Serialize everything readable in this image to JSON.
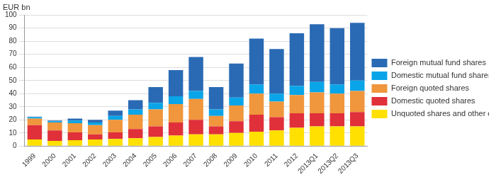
{
  "chart_data": {
    "type": "bar",
    "stacked": true,
    "ylabel": "EUR bn",
    "categories": [
      "1999",
      "2000",
      "2001",
      "2002",
      "2003",
      "2004",
      "2005",
      "2006",
      "2007",
      "2008",
      "2009",
      "2010",
      "2011",
      "2012",
      "2013Q1",
      "2013Q2",
      "2013Q3"
    ],
    "series": [
      {
        "name": "Unquoted shares and other equity",
        "color": "#ffe000",
        "values": [
          5,
          4,
          4.5,
          5,
          5.5,
          6,
          7,
          8,
          9,
          9,
          10,
          11,
          12,
          14,
          15,
          15,
          15
        ]
      },
      {
        "name": "Domestic quoted shares",
        "color": "#e0303a",
        "values": [
          11,
          8,
          6,
          4,
          5,
          7,
          8,
          10,
          11,
          6,
          9,
          13,
          10,
          11,
          10,
          10,
          11
        ]
      },
      {
        "name": "Foreign quoted shares",
        "color": "#f0963c",
        "values": [
          5,
          6,
          7,
          7,
          9.5,
          11,
          13,
          14,
          16,
          8,
          12,
          16,
          12,
          14,
          16,
          15,
          16
        ]
      },
      {
        "name": "Domestic mutual fund shares",
        "color": "#0aa5e8",
        "values": [
          1,
          1,
          2,
          2,
          3,
          4,
          5,
          6,
          6,
          5,
          6,
          7,
          6,
          7,
          8,
          7,
          8
        ]
      },
      {
        "name": "Foreign mutual fund shares",
        "color": "#2a6ab4",
        "values": [
          0.5,
          0.5,
          1.5,
          2,
          4,
          7,
          12,
          20,
          26,
          17,
          26,
          35,
          34,
          40,
          44,
          43,
          44
        ]
      }
    ],
    "ylim": [
      0,
      100
    ],
    "yticks": [
      0,
      10,
      20,
      30,
      40,
      50,
      60,
      70,
      80,
      90,
      100
    ],
    "grid": true,
    "legend": "right"
  }
}
